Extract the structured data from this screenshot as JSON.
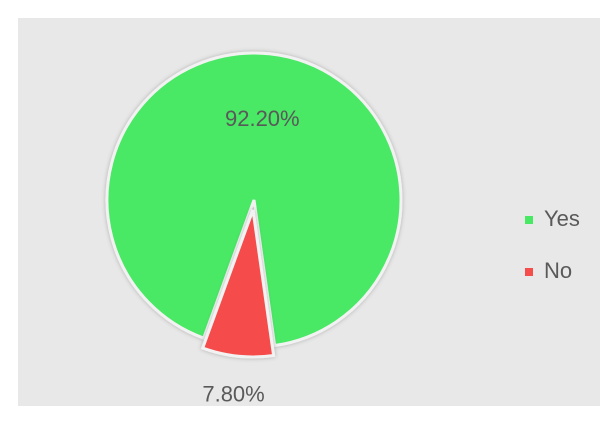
{
  "chart_data": {
    "type": "pie",
    "categories": [
      "Yes",
      "No"
    ],
    "values": [
      92.2,
      7.8
    ],
    "value_labels": [
      "92.20%",
      "7.80%"
    ],
    "colors": [
      "#48e865",
      "#f54c4c"
    ],
    "legend": "right"
  }
}
